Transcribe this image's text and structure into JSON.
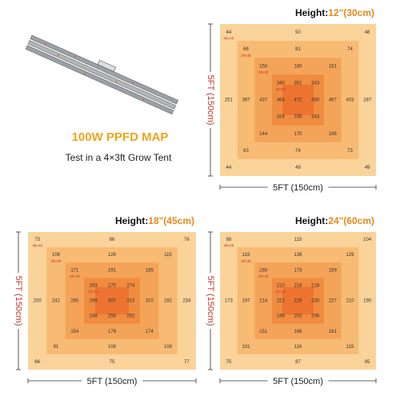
{
  "header": {
    "title": "100W PPFD MAP",
    "subtitle": "Test in a 4×3ft Grow Tent"
  },
  "maps": [
    {
      "height_label": "Height:",
      "height_value": "12\"(30cm)",
      "side_label": "5FT (150cm)",
      "bottom_label": "5FT (150cm)",
      "zones": [
        "4ft×4ft",
        "3ft×3ft",
        "2ft×2ft",
        "1ft×1ft"
      ],
      "rows": [
        [
          44,
          50,
          48
        ],
        [
          66,
          81,
          74
        ],
        [
          150,
          180,
          161
        ],
        [
          340,
          351,
          343
        ],
        [
          251,
          367,
          437,
          464,
          472,
          480,
          467,
          403,
          287
        ],
        [
          324,
          339,
          343
        ],
        [
          144,
          170,
          166
        ],
        [
          63,
          74,
          73
        ],
        [
          44,
          49,
          49
        ]
      ]
    },
    {
      "height_label": "Height:",
      "height_value": "18\"(45cm)",
      "side_label": "5FT (150cm)",
      "bottom_label": "5FT (150cm)",
      "zones": [
        "4ft×4ft",
        "3ft×3ft",
        "2ft×2ft",
        "1ft×1ft"
      ],
      "rows": [
        [
          73,
          86,
          76
        ],
        [
          106,
          126,
          115
        ],
        [
          171,
          191,
          185
        ],
        [
          263,
          270,
          274
        ],
        [
          200,
          242,
          260,
          296,
          307,
          313,
          310,
          282,
          234
        ],
        [
          248,
          258,
          262
        ],
        [
          154,
          179,
          174
        ],
        [
          91,
          108,
          108
        ],
        [
          66,
          75,
          77
        ]
      ]
    },
    {
      "height_label": "Height:",
      "height_value": "24\"(60cm)",
      "side_label": "5FT (150cm)",
      "bottom_label": "5FT (150cm)",
      "zones": [
        "4ft×4ft",
        "3ft×3ft",
        "2ft×2ft",
        "1ft×1ft"
      ],
      "rows": [
        [
          98,
          115,
          104
        ],
        [
          119,
          136,
          129
        ],
        [
          160,
          173,
          169
        ],
        [
          210,
          218,
          218
        ],
        [
          173,
          197,
          214,
          221,
          229,
          230,
          227,
          210,
          190
        ],
        [
          198,
          202,
          206
        ],
        [
          151,
          168,
          161
        ],
        [
          101,
          116,
          115
        ],
        [
          75,
          87,
          85
        ]
      ]
    }
  ]
}
